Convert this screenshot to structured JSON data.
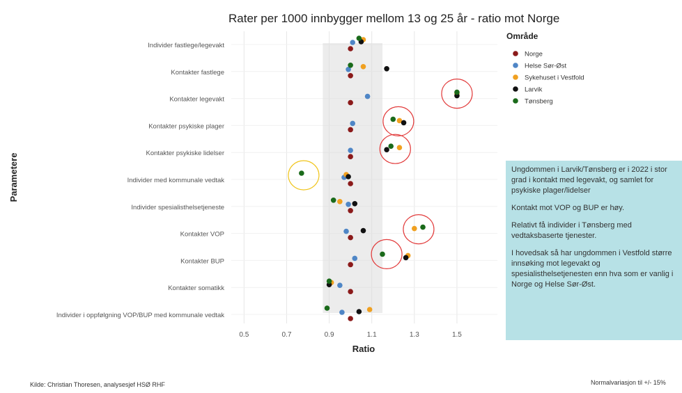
{
  "chart_data": {
    "type": "scatter",
    "title": "Rater per 1000 innbygger mellom 13 og 25 år - ratio mot Norge",
    "xlabel": "Ratio",
    "ylabel": "Parametere",
    "xlim": [
      0.44,
      1.69
    ],
    "xticks": [
      0.5,
      0.7,
      0.9,
      1.1,
      1.3,
      1.5
    ],
    "xtick_labels": [
      "0.5",
      "0.7",
      "0.9",
      "1.1",
      "1.3",
      "1.5"
    ],
    "normal_band": [
      0.87,
      1.15
    ],
    "grid": true,
    "legend_placement": "right",
    "legend_title": "Område",
    "categories": [
      "Individer fastlege/legevakt",
      "Kontakter fastlege",
      "Kontakter legevakt",
      "Kontakter psykiske plager",
      "Kontakter psykiske lidelser",
      "Individer med kommunale vedtak",
      "Individer spesialisthelsetjeneste",
      "Kontakter VOP",
      "Kontakter BUP",
      "Kontakter somatikk",
      "Individer i oppfølgning VOP/BUP med kommunale vedtak"
    ],
    "series": [
      {
        "name": "Norge",
        "color": "#8b1a1a",
        "values": [
          1.0,
          1.0,
          1.0,
          1.0,
          1.0,
          1.0,
          1.0,
          1.0,
          1.0,
          1.0,
          1.0
        ]
      },
      {
        "name": "Helse Sør-Øst",
        "color": "#4f86c6",
        "values": [
          1.01,
          0.99,
          1.08,
          1.01,
          1.0,
          0.97,
          0.99,
          0.98,
          1.02,
          0.95,
          0.96
        ]
      },
      {
        "name": "Sykehuset i Vestfold",
        "color": "#f0a020",
        "values": [
          1.06,
          1.06,
          1.5,
          1.23,
          1.23,
          0.98,
          0.95,
          1.3,
          1.27,
          0.91,
          1.09
        ]
      },
      {
        "name": "Larvik",
        "color": "#111111",
        "values": [
          1.05,
          1.17,
          1.5,
          1.25,
          1.17,
          0.99,
          1.02,
          1.06,
          1.26,
          0.9,
          1.04
        ]
      },
      {
        "name": "Tønsberg",
        "color": "#1a6a1a",
        "values": [
          1.04,
          1.0,
          1.5,
          1.2,
          1.19,
          0.77,
          0.92,
          1.34,
          1.15,
          0.9,
          0.89
        ]
      }
    ]
  },
  "infobox": {
    "paragraphs": [
      "Ungdommen i Larvik/Tønsberg er i 2022 i stor grad i kontakt med legevakt, og samlet for psykiske plager/lidelser",
      "Kontakt mot VOP og BUP er høy.",
      "Relativt få individer i Tønsberg med vedtaksbaserte tjenester.",
      "I hovedsak så har ungdommen i Vestfold større innsøking mot legevakt og spesialisthelsetjenesten enn hva som er vanlig i Norge og Helse Sør-Øst."
    ]
  },
  "footer": {
    "source": "Kilde: Christian Thoresen, analysesjef HSØ RHF",
    "note": "Normalvariasjon til +/- 15%"
  }
}
